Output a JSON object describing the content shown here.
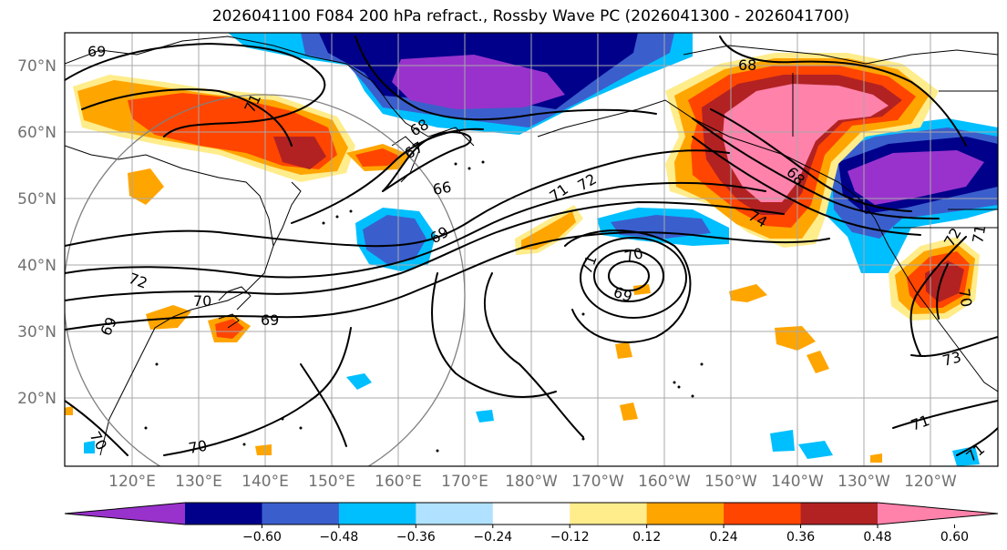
{
  "title": "2026041100 F084 200 hPa refract., Rossby Wave PC (2026041300 - 2026041700)",
  "lat_labels": [
    "70°N",
    "60°N",
    "50°N",
    "40°N",
    "30°N",
    "20°N"
  ],
  "lon_labels": [
    "120°E",
    "130°E",
    "140°E",
    "150°E",
    "160°E",
    "170°E",
    "180°W",
    "170°W",
    "160°W",
    "150°W",
    "140°W",
    "130°W",
    "120°W"
  ],
  "colorbar": {
    "ticks": [
      "−0.60",
      "−0.48",
      "−0.36",
      "−0.24",
      "−0.12",
      "0.12",
      "0.24",
      "0.36",
      "0.48",
      "0.60"
    ],
    "colors": [
      "#9932CC",
      "#00008B",
      "#3A5FCD",
      "#00BFFF",
      "#B0E2FF",
      "#FFFFFF",
      "#FFEC8B",
      "#FFA500",
      "#FF4500",
      "#B22222",
      "#FF82AB"
    ]
  },
  "contour_labels": [
    "69",
    "71",
    "68",
    "67",
    "66",
    "69",
    "71",
    "72",
    "70",
    "71",
    "69",
    "72",
    "70",
    "69",
    "69",
    "68",
    "74",
    "68",
    "72",
    "71",
    "70",
    "73",
    "71",
    "71",
    "70",
    "70"
  ]
}
